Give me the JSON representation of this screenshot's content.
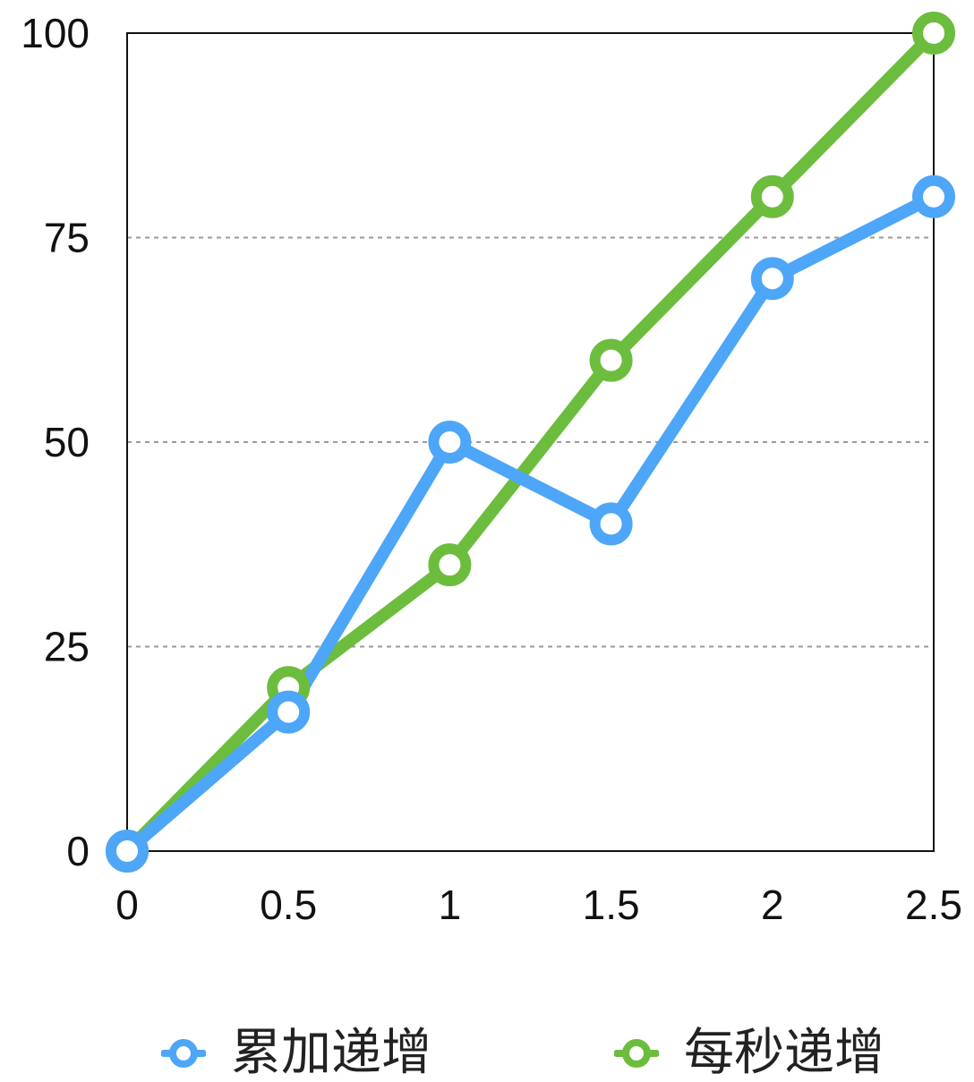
{
  "chart_data": {
    "type": "line",
    "title": "",
    "xlabel": "",
    "ylabel": "",
    "x": [
      0,
      0.5,
      1,
      1.5,
      2,
      2.5
    ],
    "x_tick_labels": [
      "0",
      "0.5",
      "1",
      "1.5",
      "2",
      "2.5"
    ],
    "y_tick_labels": [
      "0",
      "25",
      "50",
      "75",
      "100"
    ],
    "xlim": [
      0,
      2.5
    ],
    "ylim": [
      0,
      100
    ],
    "grid": "horizontal dashed",
    "legend_position": "bottom",
    "series": [
      {
        "name": "累加递增",
        "color": "#4da6f8",
        "values": [
          0,
          17,
          50,
          40,
          70,
          80
        ]
      },
      {
        "name": "每秒递增",
        "color": "#6cbd3d",
        "values": [
          0,
          20,
          35,
          60,
          80,
          100
        ]
      }
    ]
  }
}
